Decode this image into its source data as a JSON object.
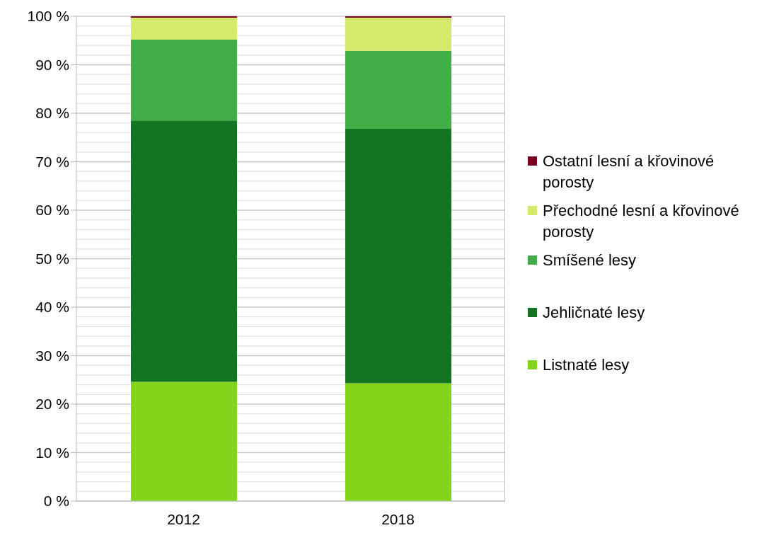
{
  "chart_data": {
    "type": "bar",
    "stacked": true,
    "categories": [
      "2012",
      "2018"
    ],
    "series": [
      {
        "name": "Listnaté lesy",
        "color": "#83d51b",
        "values": [
          24.6,
          24.3
        ]
      },
      {
        "name": "Jehličnaté lesy",
        "color": "#137522",
        "values": [
          53.9,
          52.5
        ]
      },
      {
        "name": "Smíšené lesy",
        "color": "#41ae47",
        "values": [
          16.7,
          16.1
        ]
      },
      {
        "name": "Přechodné lesní a křovinové porosty",
        "color": "#d5ea6b",
        "values": [
          4.5,
          6.8
        ]
      },
      {
        "name": "Ostatní lesní a křovinové porosty",
        "color": "#7a0020",
        "values": [
          0.3,
          0.3
        ]
      }
    ],
    "ylim": [
      0,
      100
    ],
    "yticks": [
      {
        "value": 0,
        "label": "0 %"
      },
      {
        "value": 10,
        "label": "10 %"
      },
      {
        "value": 20,
        "label": "20 %"
      },
      {
        "value": 30,
        "label": "30 %"
      },
      {
        "value": 40,
        "label": "40 %"
      },
      {
        "value": 50,
        "label": "50 %"
      },
      {
        "value": 60,
        "label": "60 %"
      },
      {
        "value": 70,
        "label": "70 %"
      },
      {
        "value": 80,
        "label": "80 %"
      },
      {
        "value": 90,
        "label": "90 %"
      },
      {
        "value": 100,
        "label": "100 %"
      }
    ],
    "grid": "y",
    "legend": "right"
  }
}
